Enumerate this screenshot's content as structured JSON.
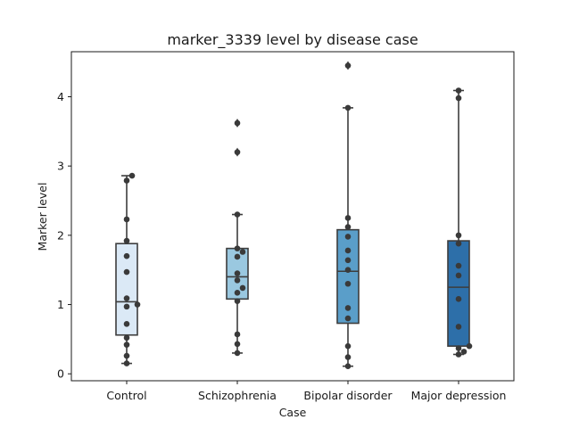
{
  "chart_data": {
    "type": "box",
    "title": "marker_3339 level by disease case",
    "xlabel": "Case",
    "ylabel": "Marker level",
    "ylim": [
      -0.1,
      4.65
    ],
    "yticks": [
      0,
      1,
      2,
      3,
      4
    ],
    "categories": [
      "Control",
      "Schizophrenia",
      "Bipolar disorder",
      "Major depression"
    ],
    "colors": [
      "#dbe9f6",
      "#9ac8e0",
      "#5a9ec9",
      "#2d6fa9"
    ],
    "boxes": [
      {
        "q1": 0.56,
        "median": 1.04,
        "q3": 1.88,
        "whisker_low": 0.15,
        "whisker_high": 2.86,
        "outliers": []
      },
      {
        "q1": 1.08,
        "median": 1.4,
        "q3": 1.81,
        "whisker_low": 0.3,
        "whisker_high": 2.3,
        "outliers": [
          3.2,
          3.62
        ]
      },
      {
        "q1": 0.73,
        "median": 1.48,
        "q3": 2.08,
        "whisker_low": 0.11,
        "whisker_high": 3.84,
        "outliers": [
          4.45
        ]
      },
      {
        "q1": 0.4,
        "median": 1.25,
        "q3": 1.92,
        "whisker_low": 0.28,
        "whisker_high": 4.09,
        "outliers": []
      }
    ],
    "points": [
      [
        0.15,
        0.26,
        0.42,
        0.52,
        0.72,
        0.97,
        1.0,
        1.09,
        1.47,
        1.7,
        1.92,
        2.23,
        2.79,
        2.86
      ],
      [
        0.3,
        0.43,
        0.57,
        1.05,
        1.17,
        1.24,
        1.35,
        1.45,
        1.69,
        1.76,
        1.81,
        2.3,
        3.2,
        3.62
      ],
      [
        0.11,
        0.24,
        0.4,
        0.8,
        0.95,
        1.3,
        1.5,
        1.64,
        1.78,
        1.98,
        2.12,
        2.25,
        3.84,
        4.45
      ],
      [
        0.28,
        0.32,
        0.37,
        0.4,
        0.68,
        1.08,
        1.42,
        1.56,
        1.88,
        2.0,
        3.98,
        4.09
      ]
    ]
  }
}
